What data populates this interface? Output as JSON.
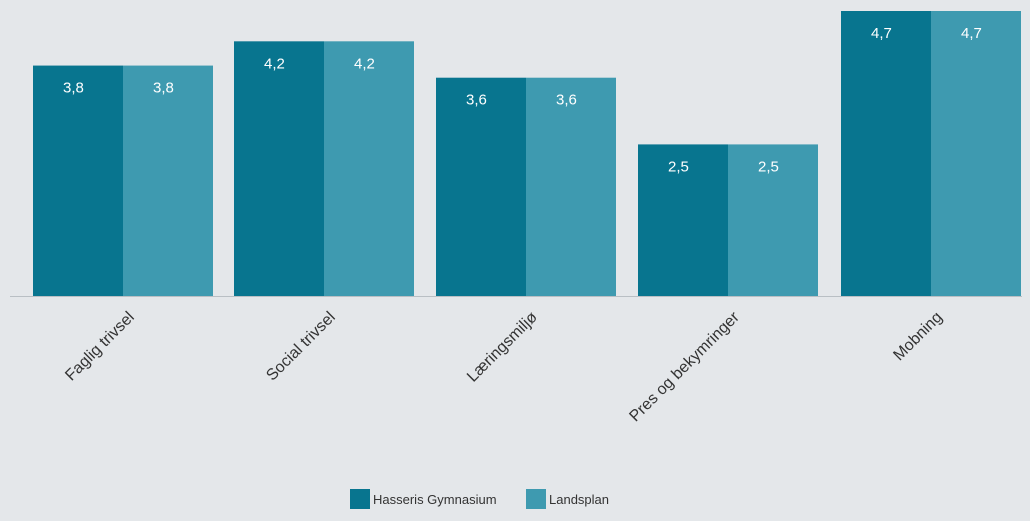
{
  "chart_data": {
    "type": "bar",
    "categories": [
      "Faglig trivsel",
      "Social trivsel",
      "Læringsmiljø",
      "Pres og bekymringer",
      "Mobning"
    ],
    "series": [
      {
        "name": "Hasseris Gymnasium",
        "values": [
          3.8,
          4.2,
          3.6,
          2.5,
          4.7
        ],
        "labels": [
          "3,8",
          "4,2",
          "3,6",
          "2,5",
          "4,7"
        ],
        "color": "#08758f"
      },
      {
        "name": "Landsplan",
        "values": [
          3.8,
          4.2,
          3.6,
          2.5,
          4.7
        ],
        "labels": [
          "3,8",
          "4,2",
          "3,6",
          "2,5",
          "4,7"
        ],
        "color": "#3e9ab0"
      }
    ],
    "ylim": [
      0,
      4.7
    ],
    "grid": false,
    "legend_position": "bottom-center"
  },
  "colors": {
    "background": "#e4e7ea",
    "axis": "#b9bfc4",
    "label_text": "#ffffff",
    "category_text": "#333333"
  }
}
